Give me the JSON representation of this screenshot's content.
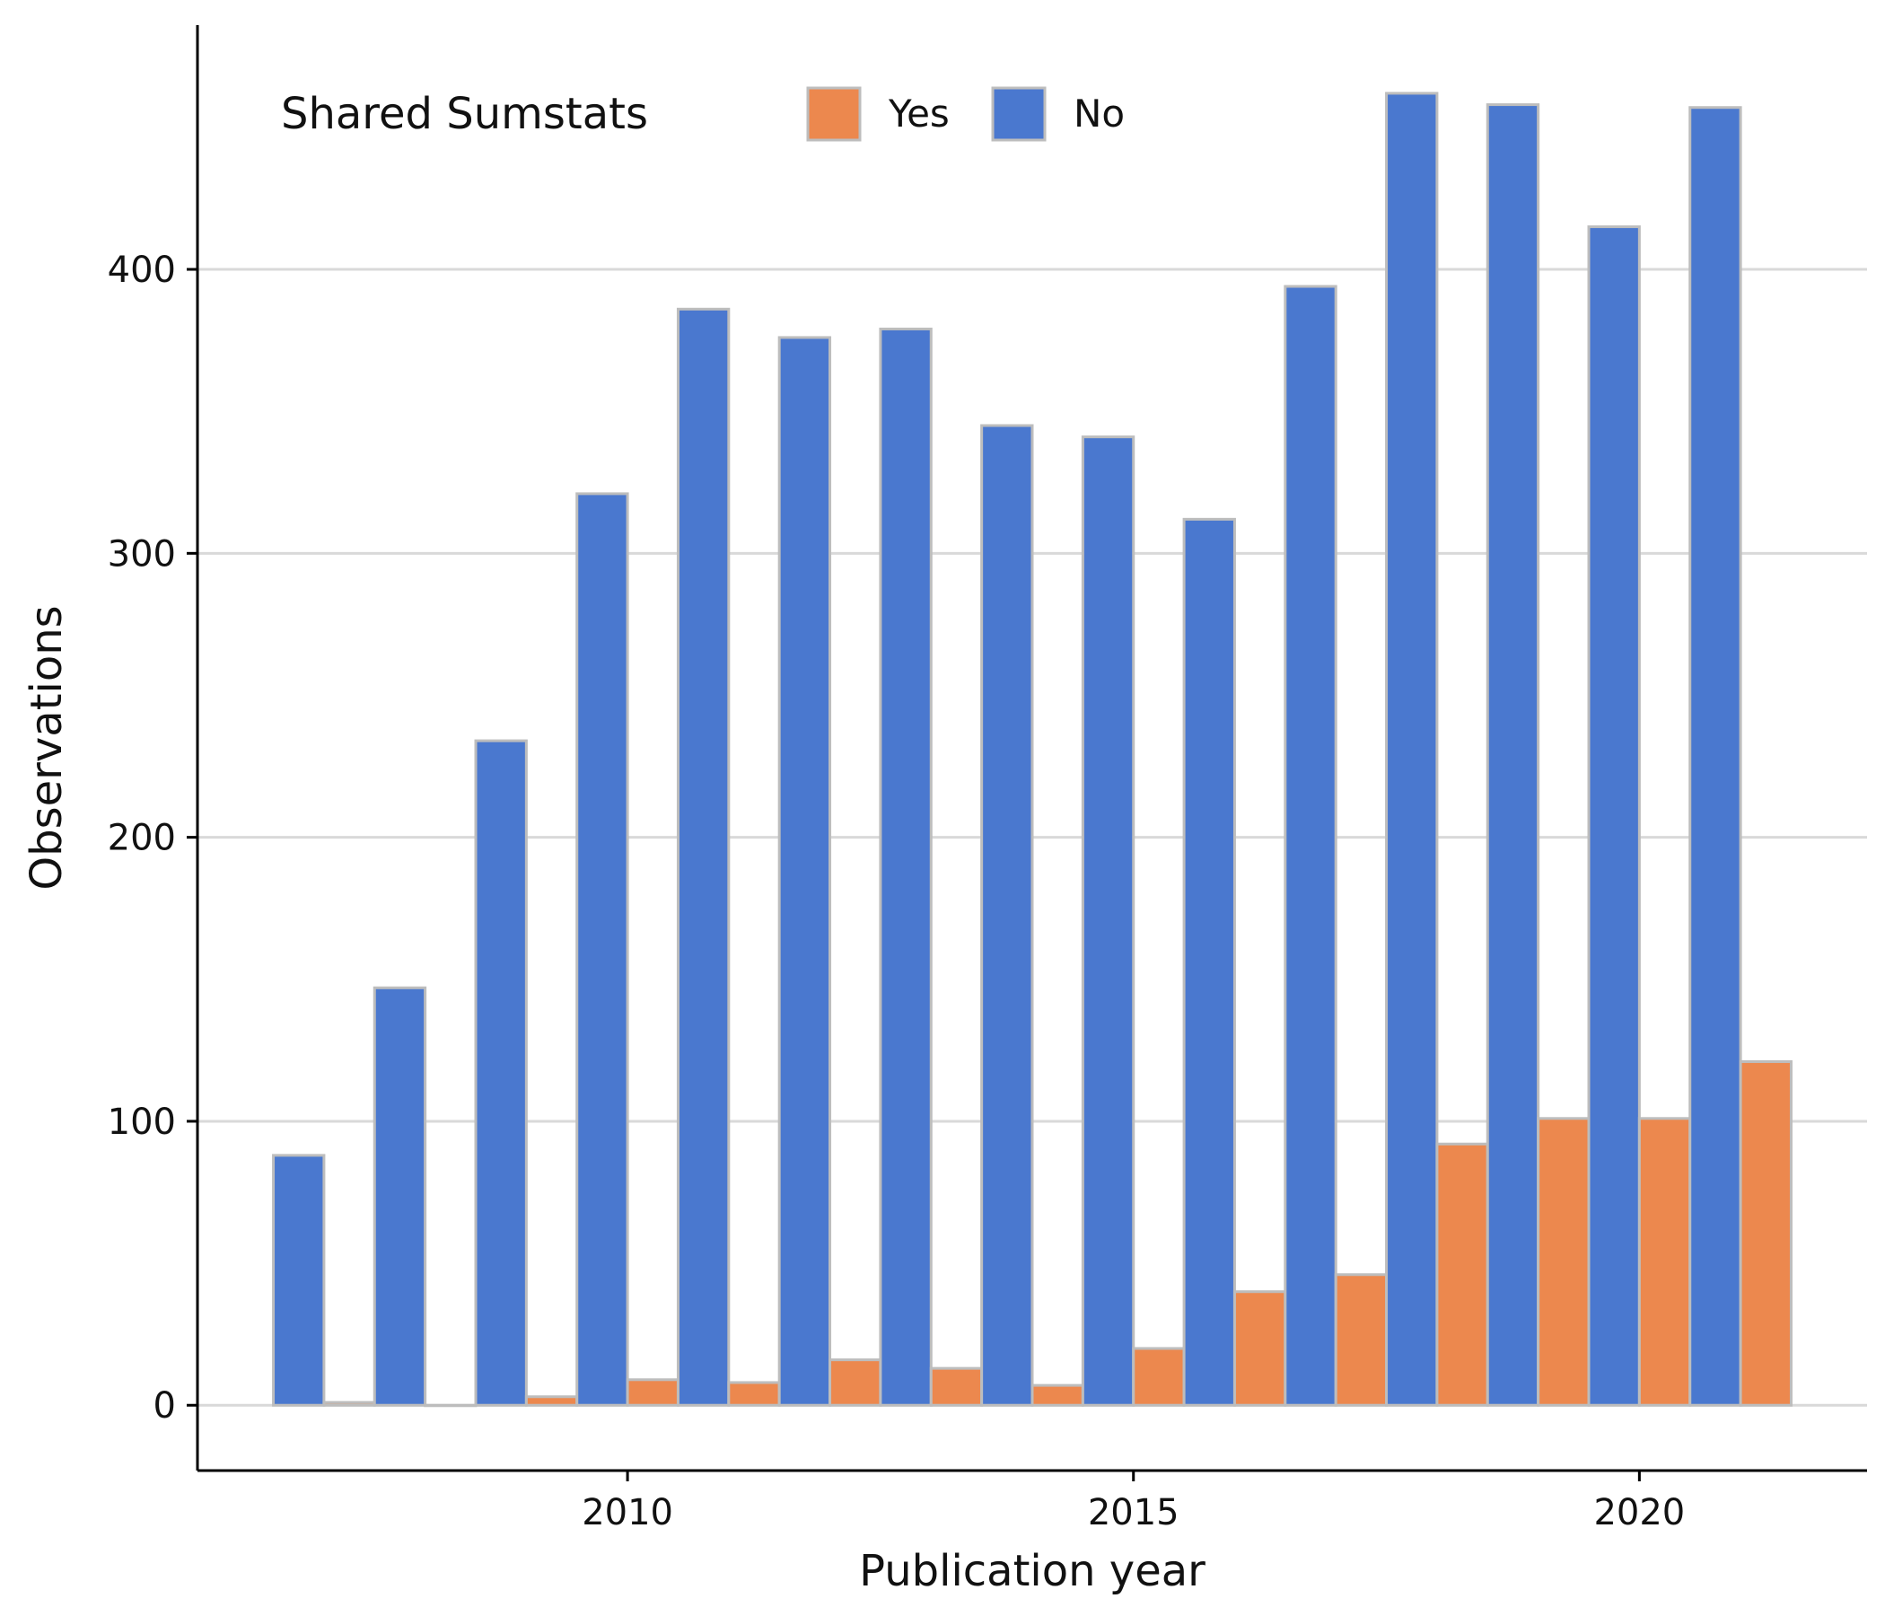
{
  "chart_data": {
    "type": "bar",
    "title": "",
    "xlabel": "Publication year",
    "ylabel": "Observations",
    "x": [
      2007,
      2008,
      2009,
      2010,
      2011,
      2012,
      2013,
      2014,
      2015,
      2016,
      2017,
      2018,
      2019,
      2020,
      2021
    ],
    "series": [
      {
        "name": "No",
        "color": "#4a78cf",
        "values": [
          88,
          147,
          234,
          321,
          386,
          376,
          379,
          345,
          341,
          312,
          394,
          462,
          458,
          415,
          457
        ]
      },
      {
        "name": "Yes",
        "color": "#ec884e",
        "values": [
          1,
          0,
          3,
          9,
          8,
          16,
          13,
          7,
          20,
          40,
          46,
          92,
          101,
          101,
          121
        ]
      }
    ],
    "xlim": [
      2005.75,
      2022.25
    ],
    "ylim": [
      -23,
      486
    ],
    "xticks": [
      2010,
      2015,
      2020
    ],
    "yticks": [
      0,
      100,
      200,
      300,
      400
    ],
    "grid": "horizontal",
    "bar_edge_color": "#bdbdbd",
    "grid_color": "#d9d9d9",
    "legend": {
      "title": "Shared Sumstats",
      "position": "top-left",
      "entries": [
        {
          "label": "Yes",
          "color": "#ec884e"
        },
        {
          "label": "No",
          "color": "#4a78cf"
        }
      ]
    }
  }
}
